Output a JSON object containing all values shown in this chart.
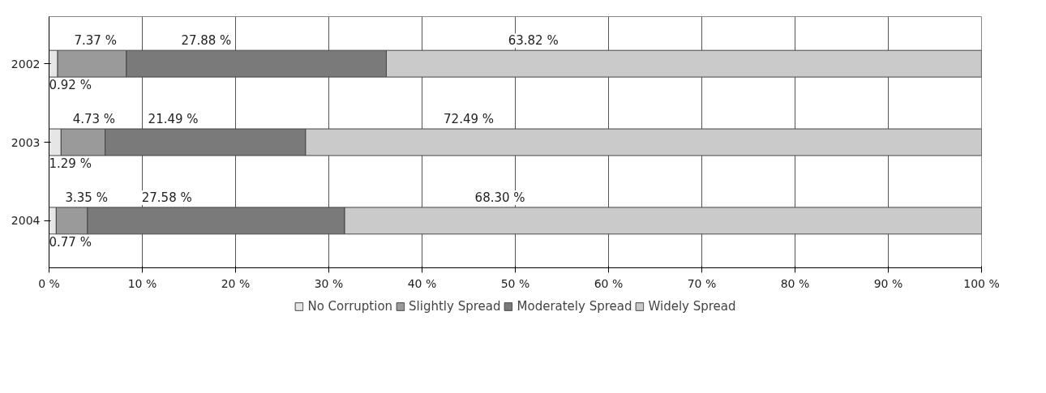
{
  "chart_data": {
    "type": "bar",
    "orientation": "horizontal",
    "stacked": true,
    "categories": [
      "2002",
      "2003",
      "2004"
    ],
    "series": [
      {
        "name": "No Corruption",
        "color": "#e6e6e6",
        "values": [
          0.92,
          1.29,
          0.77
        ],
        "value_labels": [
          "0.92 %",
          "1.29 %",
          "0.77 %"
        ]
      },
      {
        "name": "Slightly Spread",
        "color": "#9a9a9a",
        "values": [
          7.37,
          4.73,
          3.35
        ],
        "value_labels": [
          "7.37 %",
          "4.73 %",
          "3.35 %"
        ]
      },
      {
        "name": "Moderately Spread",
        "color": "#7a7a7a",
        "values": [
          27.88,
          21.49,
          27.58
        ],
        "value_labels": [
          "27.88 %",
          "21.49 %",
          "27.58 %"
        ]
      },
      {
        "name": "Widely Spread",
        "color": "#cacaca",
        "values": [
          63.82,
          72.49,
          68.3
        ],
        "value_labels": [
          "63.82 %",
          "72.49 %",
          "68.30 %"
        ]
      }
    ],
    "xlim": [
      0,
      100
    ],
    "xticks": [
      {
        "value": 0,
        "label": "0 %"
      },
      {
        "value": 10,
        "label": "10 %"
      },
      {
        "value": 20,
        "label": "20 %"
      },
      {
        "value": 30,
        "label": "30 %"
      },
      {
        "value": 40,
        "label": "40 %"
      },
      {
        "value": 50,
        "label": "50 %"
      },
      {
        "value": 60,
        "label": "60 %"
      },
      {
        "value": 70,
        "label": "70 %"
      },
      {
        "value": 80,
        "label": "80 %"
      },
      {
        "value": 90,
        "label": "90 %"
      },
      {
        "value": 100,
        "label": "100 %"
      }
    ],
    "grid": "x",
    "legend": "bottom"
  }
}
